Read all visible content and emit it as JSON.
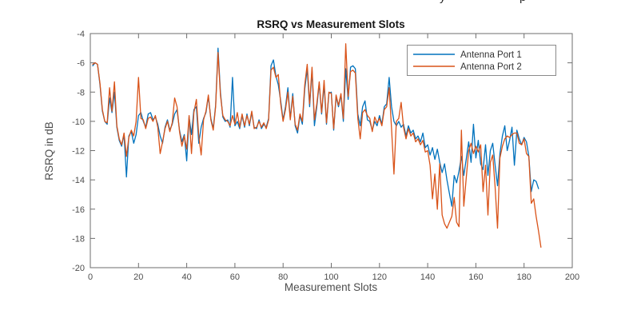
{
  "cropped_text_fragments": [
    "y",
    "p"
  ],
  "chart_data": {
    "type": "line",
    "title": "RSRQ vs Measurement Slots",
    "xlabel": "Measurement Slots",
    "ylabel": "RSRQ in dB",
    "xlim": [
      0,
      200
    ],
    "ylim": [
      -20,
      -4
    ],
    "xticks": [
      0,
      20,
      40,
      60,
      80,
      100,
      120,
      140,
      160,
      180,
      200
    ],
    "yticks": [
      -20,
      -18,
      -16,
      -14,
      -12,
      -10,
      -8,
      -6,
      -4
    ],
    "grid": false,
    "legend": {
      "position": "top-right",
      "entries": [
        "Antenna Port 1",
        "Antenna Port 2"
      ]
    },
    "x_start": 1,
    "x_step": 1,
    "series": [
      {
        "name": "Antenna Port 1",
        "color": "#0072BD",
        "values": [
          -6.2,
          -6.0,
          -6.1,
          -7.5,
          -9.3,
          -10.0,
          -10.2,
          -8.4,
          -9.4,
          -8.0,
          -10.4,
          -11.3,
          -11.7,
          -10.9,
          -13.8,
          -11.0,
          -10.7,
          -11.5,
          -10.9,
          -9.6,
          -9.4,
          -10.0,
          -10.4,
          -9.5,
          -9.4,
          -9.9,
          -9.7,
          -10.2,
          -11.0,
          -11.5,
          -10.4,
          -9.9,
          -10.6,
          -10.2,
          -9.5,
          -9.2,
          -10.6,
          -11.4,
          -10.9,
          -12.7,
          -9.7,
          -10.9,
          -9.2,
          -9.0,
          -11.5,
          -10.4,
          -9.8,
          -9.4,
          -8.3,
          -9.8,
          -10.5,
          -8.9,
          -5.0,
          -8.0,
          -9.7,
          -10.0,
          -9.9,
          -10.4,
          -7.0,
          -10.3,
          -10.0,
          -10.5,
          -9.6,
          -10.4,
          -9.5,
          -10.3,
          -9.4,
          -10.4,
          -10.5,
          -9.9,
          -10.5,
          -10.2,
          -10.4,
          -9.8,
          -6.2,
          -5.8,
          -6.9,
          -7.5,
          -8.6,
          -9.9,
          -9.0,
          -7.7,
          -9.8,
          -8.1,
          -10.3,
          -10.8,
          -9.6,
          -10.2,
          -7.8,
          -6.4,
          -9.0,
          -6.5,
          -10.3,
          -9.0,
          -7.4,
          -9.5,
          -7.5,
          -10.2,
          -8.1,
          -8.0,
          -10.6,
          -8.3,
          -9.0,
          -8.2,
          -10.0,
          -6.4,
          -8.5,
          -6.3,
          -6.2,
          -6.4,
          -9.5,
          -10.3,
          -9.0,
          -8.6,
          -9.9,
          -10.0,
          -10.6,
          -10.0,
          -10.3,
          -9.6,
          -10.2,
          -9.0,
          -8.8,
          -7.0,
          -9.0,
          -10.0,
          -10.3,
          -10.0,
          -10.4,
          -10.2,
          -11.0,
          -10.3,
          -10.8,
          -10.6,
          -11.2,
          -11.0,
          -11.4,
          -10.8,
          -11.8,
          -11.6,
          -12.3,
          -11.8,
          -12.6,
          -11.9,
          -12.8,
          -13.5,
          -12.9,
          -14.0,
          -14.9,
          -15.8,
          -13.7,
          -14.2,
          -13.4,
          -12.4,
          -13.7,
          -12.6,
          -11.4,
          -12.8,
          -10.2,
          -12.5,
          -11.3,
          -12.9,
          -13.3,
          -11.6,
          -13.7,
          -12.0,
          -11.5,
          -13.0,
          -14.4,
          -12.2,
          -11.0,
          -10.3,
          -12.0,
          -11.3,
          -10.4,
          -13.0,
          -10.6,
          -11.2,
          -11.6,
          -11.1,
          -11.4,
          -12.4,
          -14.8,
          -14.0,
          -14.1,
          -14.6
        ]
      },
      {
        "name": "Antenna Port 2",
        "color": "#D95319",
        "values": [
          -6.1,
          -6.0,
          -6.1,
          -7.4,
          -9.2,
          -10.0,
          -10.1,
          -7.7,
          -9.3,
          -7.3,
          -10.3,
          -11.2,
          -11.6,
          -10.8,
          -12.4,
          -11.1,
          -10.6,
          -11.0,
          -10.0,
          -7.0,
          -9.8,
          -9.9,
          -10.5,
          -9.8,
          -9.7,
          -10.0,
          -9.6,
          -10.4,
          -12.2,
          -11.4,
          -10.5,
          -10.0,
          -10.7,
          -10.1,
          -8.4,
          -9.0,
          -10.7,
          -11.7,
          -11.0,
          -11.9,
          -9.6,
          -12.2,
          -9.4,
          -8.5,
          -11.0,
          -12.3,
          -9.9,
          -9.3,
          -8.2,
          -9.9,
          -10.6,
          -9.0,
          -5.3,
          -8.2,
          -9.6,
          -9.9,
          -10.0,
          -10.3,
          -9.6,
          -10.2,
          -9.4,
          -10.4,
          -9.5,
          -10.3,
          -9.6,
          -10.2,
          -9.3,
          -10.5,
          -10.4,
          -10.0,
          -10.4,
          -10.1,
          -10.5,
          -9.9,
          -6.5,
          -6.3,
          -7.0,
          -6.8,
          -8.8,
          -10.0,
          -9.2,
          -8.0,
          -9.9,
          -8.3,
          -10.2,
          -10.6,
          -9.5,
          -10.0,
          -7.5,
          -6.1,
          -8.8,
          -6.3,
          -9.9,
          -8.8,
          -7.3,
          -9.4,
          -7.2,
          -10.1,
          -8.0,
          -8.1,
          -10.5,
          -8.2,
          -8.9,
          -8.1,
          -9.8,
          -4.7,
          -8.3,
          -6.6,
          -6.5,
          -6.7,
          -9.8,
          -11.2,
          -9.4,
          -9.2,
          -9.6,
          -9.8,
          -10.7,
          -9.7,
          -10.1,
          -9.8,
          -10.3,
          -9.2,
          -9.0,
          -7.7,
          -10.5,
          -13.6,
          -10.0,
          -9.8,
          -8.7,
          -10.4,
          -11.2,
          -10.5,
          -11.0,
          -10.8,
          -11.4,
          -11.2,
          -11.6,
          -11.3,
          -12.1,
          -12.0,
          -13.0,
          -15.3,
          -13.6,
          -16.0,
          -12.9,
          -16.4,
          -17.0,
          -17.3,
          -16.9,
          -16.5,
          -15.2,
          -16.9,
          -17.2,
          -10.6,
          -15.8,
          -13.9,
          -12.0,
          -11.5,
          -12.2,
          -11.7,
          -12.1,
          -11.6,
          -14.8,
          -13.0,
          -16.4,
          -12.8,
          -12.3,
          -14.5,
          -17.3,
          -12.5,
          -11.7,
          -11.2,
          -11.0,
          -11.1,
          -10.9,
          -10.8,
          -10.8,
          -11.5,
          -11.6,
          -11.2,
          -12.2,
          -12.4,
          -15.6,
          -15.3,
          -16.5,
          -17.5,
          -18.6
        ]
      }
    ]
  }
}
